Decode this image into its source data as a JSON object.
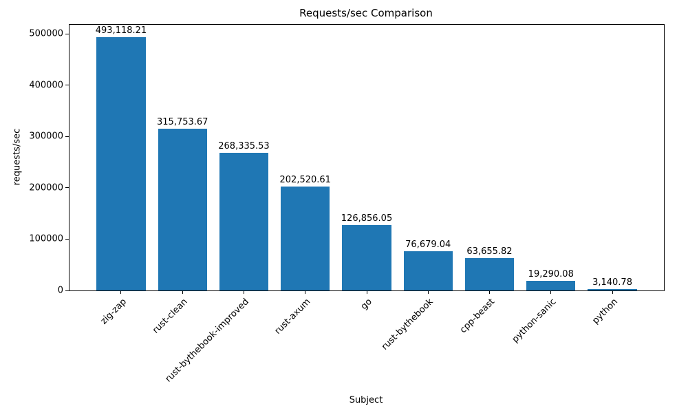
{
  "chart_data": {
    "type": "bar",
    "title": "Requests/sec Comparison",
    "xlabel": "Subject",
    "ylabel": "requests/sec",
    "categories": [
      "zig-zap",
      "rust-clean",
      "rust-bythebook-improved",
      "rust-axum",
      "go",
      "rust-bythebook",
      "cpp-beast",
      "python-sanic",
      "python"
    ],
    "values": [
      493118.21,
      315753.67,
      268335.53,
      202520.61,
      126856.05,
      76679.04,
      63655.82,
      19290.08,
      3140.78
    ],
    "value_labels": [
      "493,118.21",
      "315,753.67",
      "268,335.53",
      "202,520.61",
      "126,856.05",
      "76,679.04",
      "63,655.82",
      "19,290.08",
      "3,140.78"
    ],
    "yticks": [
      0,
      100000,
      200000,
      300000,
      400000,
      500000
    ],
    "ylim": [
      0,
      517774
    ],
    "bar_color": "#1f77b4",
    "grid": false,
    "legend": false
  }
}
